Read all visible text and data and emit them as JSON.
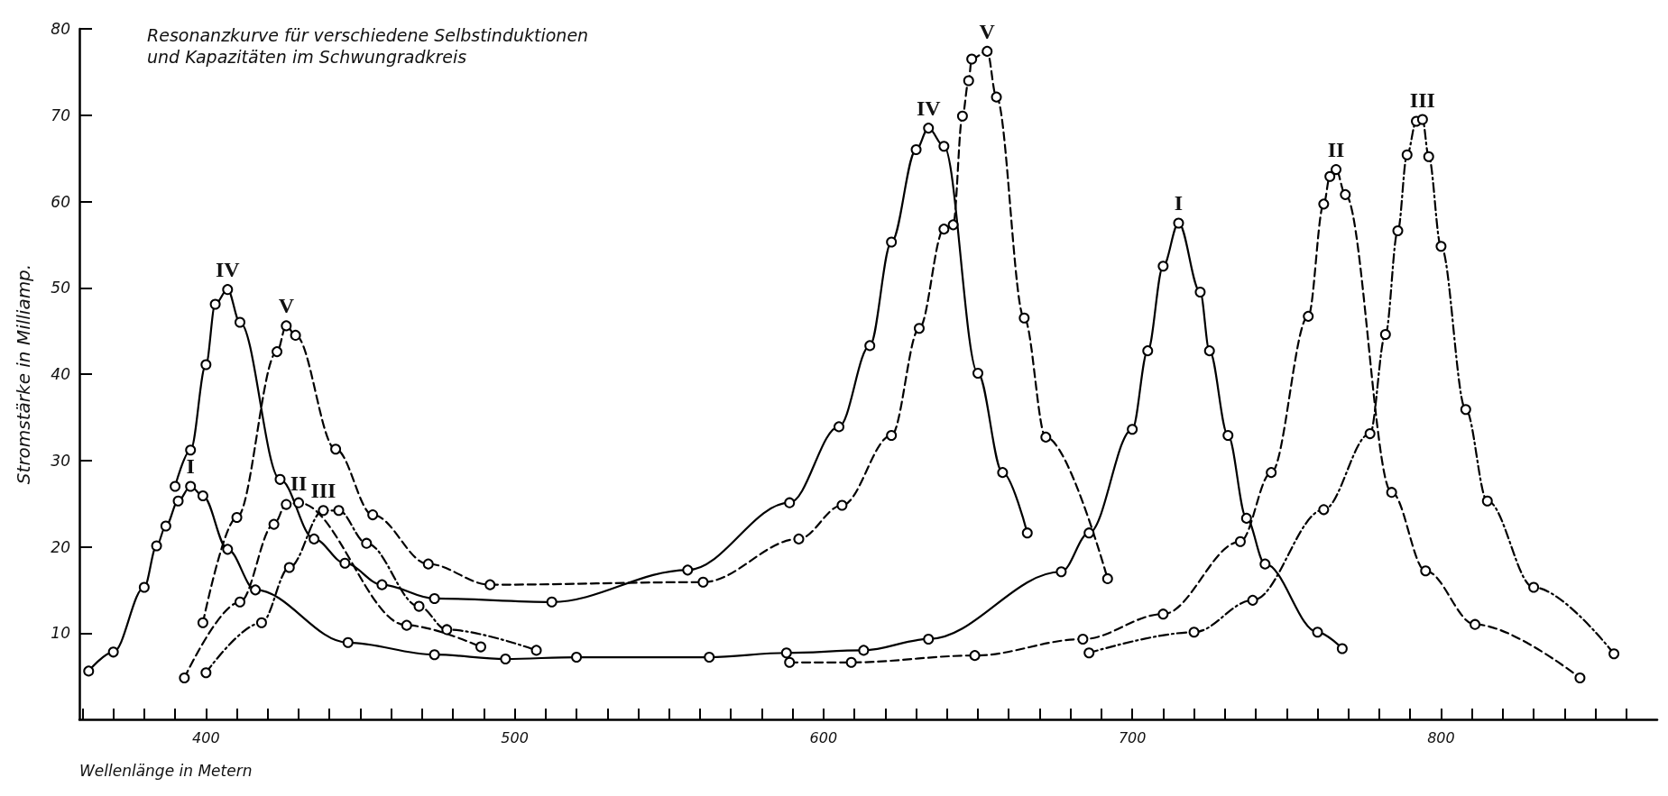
{
  "chart_data": {
    "type": "line",
    "title": "Resonanzkurve für verschiedene Selbstinduktionen\nund Kapazitäten im Schwungradkreis",
    "xlabel": "Wellenlänge in Metern",
    "ylabel": "Stromstärke in Milliamp.",
    "xlim": [
      359,
      870
    ],
    "ylim": [
      0,
      80
    ],
    "xticks": [
      {
        "value": 360,
        "label": null
      },
      {
        "value": 370,
        "label": null
      },
      {
        "value": 380,
        "label": null
      },
      {
        "value": 390,
        "label": null
      },
      400,
      {
        "value": 410,
        "label": null
      },
      {
        "value": 420,
        "label": null
      },
      {
        "value": 430,
        "label": null
      },
      {
        "value": 440,
        "label": null
      },
      {
        "value": 450,
        "label": null
      },
      {
        "value": 460,
        "label": null
      },
      {
        "value": 470,
        "label": null
      },
      {
        "value": 480,
        "label": null
      },
      {
        "value": 490,
        "label": null
      },
      500,
      {
        "value": 510,
        "label": null
      },
      {
        "value": 520,
        "label": null
      },
      {
        "value": 530,
        "label": null
      },
      {
        "value": 540,
        "label": null
      },
      {
        "value": 550,
        "label": null
      },
      {
        "value": 560,
        "label": null
      },
      {
        "value": 570,
        "label": null
      },
      {
        "value": 580,
        "label": null
      },
      {
        "value": 590,
        "label": null
      },
      600,
      {
        "value": 610,
        "label": null
      },
      {
        "value": 620,
        "label": null
      },
      {
        "value": 630,
        "label": null
      },
      {
        "value": 640,
        "label": null
      },
      {
        "value": 650,
        "label": null
      },
      {
        "value": 660,
        "label": null
      },
      {
        "value": 670,
        "label": null
      },
      {
        "value": 680,
        "label": null
      },
      {
        "value": 690,
        "label": null
      },
      700,
      {
        "value": 710,
        "label": null
      },
      {
        "value": 720,
        "label": null
      },
      {
        "value": 730,
        "label": null
      },
      {
        "value": 740,
        "label": null
      },
      {
        "value": 750,
        "label": null
      },
      {
        "value": 760,
        "label": null
      },
      {
        "value": 770,
        "label": null
      },
      {
        "value": 780,
        "label": null
      },
      {
        "value": 790,
        "label": null
      },
      800,
      {
        "value": 810,
        "label": null
      },
      {
        "value": 820,
        "label": null
      },
      {
        "value": 830,
        "label": null
      },
      {
        "value": 840,
        "label": null
      },
      {
        "value": 850,
        "label": null
      },
      {
        "value": 860,
        "label": null
      }
    ],
    "yticks": [
      10,
      20,
      30,
      40,
      50,
      60,
      70,
      80
    ],
    "grid": false,
    "legend": false,
    "marker": "circle",
    "series": [
      {
        "name": "I",
        "color": "#000000",
        "line_style": "solid",
        "x": [
          362,
          370,
          380,
          384,
          387,
          391,
          395,
          399,
          407,
          416,
          446,
          474,
          497,
          520,
          563,
          588,
          613,
          634,
          677,
          686,
          700,
          705,
          710,
          715,
          722,
          725,
          731,
          737,
          743,
          760,
          768
        ],
        "values": [
          5.6,
          7.8,
          15.3,
          20.1,
          22.4,
          25.3,
          27.0,
          25.9,
          19.7,
          15.0,
          8.9,
          7.5,
          7.0,
          7.2,
          7.2,
          7.7,
          8.0,
          9.3,
          17.1,
          21.6,
          33.6,
          42.7,
          52.5,
          57.5,
          49.5,
          42.7,
          32.9,
          23.3,
          18.0,
          10.1,
          8.2
        ]
      },
      {
        "name": "II",
        "color": "#000000",
        "line_style": "dashed",
        "x": [
          393,
          411,
          422,
          426,
          430,
          465,
          489,
          null,
          589,
          609,
          649,
          684,
          710,
          735,
          745,
          757,
          762,
          764,
          766,
          769,
          784,
          795,
          811,
          845
        ],
        "values": [
          4.8,
          13.6,
          22.6,
          24.9,
          25.1,
          10.9,
          8.4,
          null,
          6.6,
          6.6,
          7.4,
          9.3,
          12.2,
          20.6,
          28.6,
          46.7,
          59.7,
          62.9,
          63.7,
          60.8,
          26.3,
          17.2,
          11.0,
          4.8
        ]
      },
      {
        "name": "III",
        "color": "#000000",
        "line_style": "dotted",
        "x": [
          400,
          418,
          427,
          438,
          443,
          452,
          469,
          478,
          507,
          null,
          686,
          720,
          739,
          762,
          777,
          782,
          786,
          789,
          792,
          794,
          796,
          800,
          808,
          815,
          830,
          856
        ],
        "values": [
          5.4,
          11.2,
          17.6,
          24.2,
          24.2,
          20.4,
          13.1,
          10.4,
          8.0,
          null,
          7.7,
          10.1,
          13.8,
          24.3,
          33.1,
          44.6,
          56.6,
          65.4,
          69.3,
          69.5,
          65.2,
          54.8,
          35.9,
          25.3,
          15.3,
          7.6
        ]
      },
      {
        "name": "IV",
        "color": "#000000",
        "line_style": "solid",
        "x": [
          390,
          395,
          400,
          403,
          407,
          411,
          424,
          435,
          445,
          457,
          474,
          512,
          556,
          589,
          605,
          615,
          622,
          630,
          634,
          639,
          650,
          658,
          666
        ],
        "values": [
          27.0,
          31.2,
          41.1,
          48.1,
          49.8,
          46.0,
          27.8,
          20.9,
          18.1,
          15.6,
          14.0,
          13.6,
          17.3,
          25.1,
          33.9,
          43.3,
          55.3,
          66.0,
          68.5,
          66.4,
          40.1,
          28.6,
          21.6
        ]
      },
      {
        "name": "V",
        "color": "#000000",
        "line_style": "dashed",
        "x": [
          399,
          410,
          423,
          426,
          429,
          442,
          454,
          472,
          492,
          561,
          592,
          606,
          622,
          631,
          639,
          642,
          645,
          647,
          648,
          653,
          656,
          665,
          672,
          692
        ],
        "values": [
          11.2,
          23.4,
          42.6,
          45.6,
          44.5,
          31.3,
          23.7,
          18.0,
          15.6,
          15.9,
          20.9,
          24.8,
          32.9,
          45.3,
          56.8,
          57.3,
          69.9,
          74.0,
          76.5,
          77.4,
          72.1,
          46.5,
          32.7,
          16.3
        ]
      }
    ]
  }
}
